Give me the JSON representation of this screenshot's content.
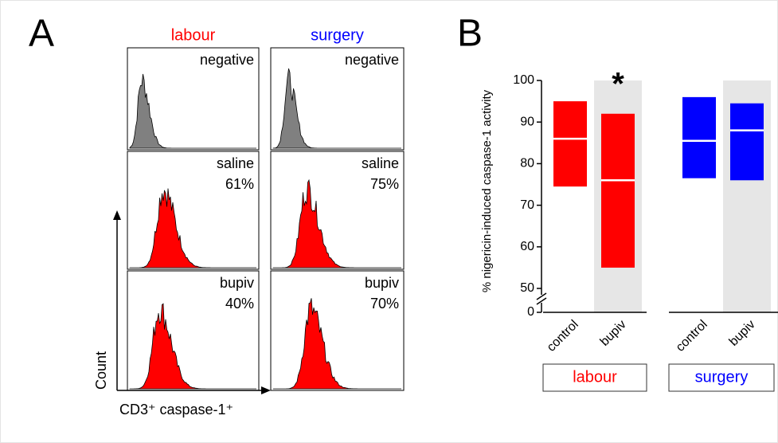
{
  "panel_a": {
    "label": "A",
    "columns": [
      "labour",
      "surgery"
    ],
    "column_colors": [
      "#ff0000",
      "#0000ff"
    ],
    "rows": [
      {
        "label": "negative",
        "fill": "#808080"
      },
      {
        "label": "saline",
        "fill": "#ff0000",
        "percent": [
          "61%",
          "75%"
        ]
      },
      {
        "label": "bupiv",
        "fill": "#ff0000",
        "percent": [
          "40%",
          "70%"
        ]
      }
    ],
    "y_axis_label": "Count",
    "x_axis_label": "CD3⁺ caspase-1⁺"
  },
  "chart_data": {
    "type": "floating_bar",
    "panel_label": "B",
    "y_label": "% nigericin-induced caspase-1 activity",
    "ylim": [
      0,
      100
    ],
    "axis_break": [
      0,
      50
    ],
    "yticks": [
      0,
      50,
      60,
      70,
      80,
      90,
      100
    ],
    "groups": [
      {
        "name": "labour",
        "color": "#ff0000",
        "categories": [
          "control",
          "bupiv"
        ],
        "low": [
          74.5,
          55
        ],
        "high": [
          95,
          92
        ],
        "median": [
          86,
          76
        ],
        "shaded": [
          false,
          true
        ],
        "annotations": [
          null,
          "*"
        ]
      },
      {
        "name": "surgery",
        "color": "#0000ff",
        "categories": [
          "control",
          "bupiv"
        ],
        "low": [
          76.5,
          76
        ],
        "high": [
          96,
          94.5
        ],
        "median": [
          85.5,
          88
        ],
        "shaded": [
          false,
          true
        ],
        "annotations": [
          null,
          null
        ]
      }
    ]
  }
}
